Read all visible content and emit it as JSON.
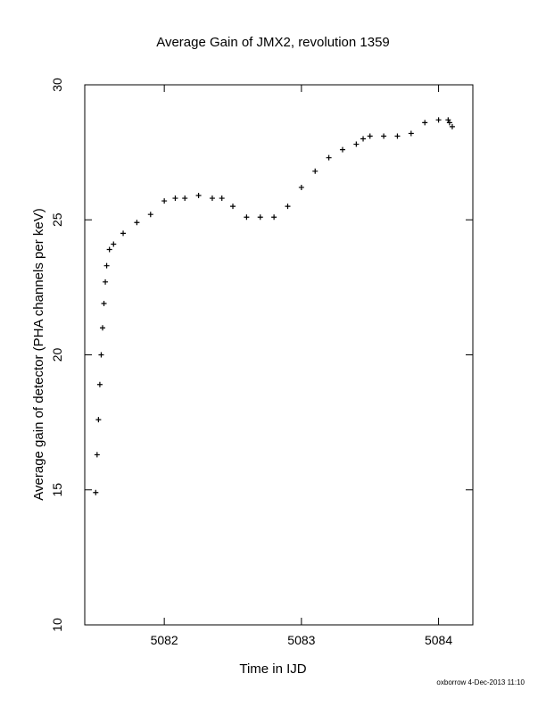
{
  "chart_data": {
    "type": "scatter",
    "title": "Average Gain of JMX2, revolution 1359",
    "xlabel": "Time in IJD",
    "ylabel": "Average gain of detector (PHA channels per keV)",
    "footer": "oxborrow  4-Dec-2013 11:10",
    "xlim": [
      5081.42,
      5084.25
    ],
    "ylim": [
      10,
      30
    ],
    "x_ticks": [
      5082,
      5083,
      5084
    ],
    "x_tick_labels": [
      "5082",
      "5083",
      "5084"
    ],
    "y_ticks": [
      10,
      15,
      20,
      25,
      30
    ],
    "y_tick_labels": [
      "10",
      "15",
      "20",
      "25",
      "30"
    ],
    "grid": false,
    "legend": "none",
    "marker": "plus",
    "color": "#000000",
    "series": [
      {
        "x": [
          5081.5,
          5081.51,
          5081.52,
          5081.53,
          5081.54,
          5081.55,
          5081.56,
          5081.57,
          5081.58,
          5081.6,
          5081.63,
          5081.7,
          5081.8,
          5081.9,
          5082.0,
          5082.08,
          5082.15,
          5082.25,
          5082.35,
          5082.42,
          5082.5,
          5082.6,
          5082.7,
          5082.8,
          5082.9,
          5083.0,
          5083.1,
          5083.2,
          5083.3,
          5083.4,
          5083.45,
          5083.5,
          5083.6,
          5083.7,
          5083.8,
          5083.9,
          5084.0,
          5084.07
        ],
        "y": [
          14.9,
          16.3,
          17.6,
          18.9,
          20.0,
          21.0,
          21.9,
          22.7,
          23.3,
          23.9,
          24.1,
          24.5,
          24.9,
          25.2,
          25.7,
          25.8,
          25.8,
          25.9,
          25.8,
          25.8,
          25.5,
          25.1,
          25.1,
          25.1,
          25.5,
          26.2,
          26.8,
          27.3,
          27.6,
          27.8,
          28.0,
          28.1,
          28.1,
          28.1,
          28.2,
          28.6,
          28.7,
          28.7
        ]
      },
      {
        "x": [
          5084.08,
          5084.1
        ],
        "y": [
          28.6,
          28.45
        ]
      }
    ]
  }
}
